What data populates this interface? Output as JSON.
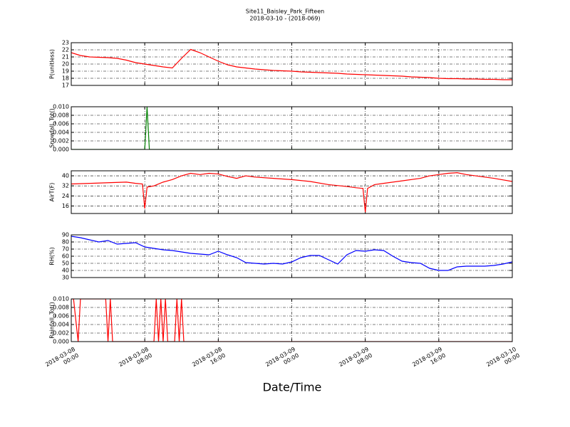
{
  "title": "Site11_Baisley_Park_Fifteen",
  "subtitle": "2018-03-10 - (2018-069)",
  "xlabel": "Date/Time",
  "chart_data": [
    {
      "type": "line",
      "ylabel": "P(unitless)",
      "color": "#ff0000",
      "grid": true,
      "xlim": [
        "2018-03-08 00:00",
        "2018-03-10 00:00"
      ],
      "ylim": [
        17,
        23
      ],
      "yticks": [
        17,
        18,
        19,
        20,
        21,
        22,
        23
      ],
      "x": [
        "2018-03-08 00:00",
        "2018-03-08 01:00",
        "2018-03-08 02:00",
        "2018-03-08 03:00",
        "2018-03-08 04:00",
        "2018-03-08 05:00",
        "2018-03-08 06:00",
        "2018-03-08 07:00",
        "2018-03-08 08:00",
        "2018-03-08 09:00",
        "2018-03-08 10:00",
        "2018-03-08 11:00",
        "2018-03-08 12:00",
        "2018-03-08 13:00",
        "2018-03-08 14:00",
        "2018-03-08 15:00",
        "2018-03-08 16:00",
        "2018-03-08 17:00",
        "2018-03-08 18:00",
        "2018-03-08 19:00",
        "2018-03-08 20:00",
        "2018-03-08 21:00",
        "2018-03-08 22:00",
        "2018-03-08 23:00",
        "2018-03-09 00:00",
        "2018-03-09 01:00",
        "2018-03-09 02:00",
        "2018-03-09 03:00",
        "2018-03-09 04:00",
        "2018-03-09 05:00",
        "2018-03-09 06:00",
        "2018-03-09 07:00",
        "2018-03-09 08:00",
        "2018-03-09 09:00",
        "2018-03-09 10:00",
        "2018-03-09 11:00",
        "2018-03-09 12:00",
        "2018-03-09 13:00",
        "2018-03-09 14:00",
        "2018-03-09 15:00",
        "2018-03-09 16:00",
        "2018-03-09 17:00",
        "2018-03-09 18:00",
        "2018-03-09 19:00",
        "2018-03-09 20:00",
        "2018-03-09 21:00",
        "2018-03-09 22:00",
        "2018-03-09 23:00",
        "2018-03-10 00:00"
      ],
      "values": [
        21.6,
        21.2,
        21.0,
        20.95,
        20.9,
        20.8,
        20.55,
        20.2,
        20.0,
        19.8,
        19.6,
        19.45,
        20.8,
        22.05,
        21.6,
        21.0,
        20.4,
        19.9,
        19.6,
        19.45,
        19.3,
        19.2,
        19.1,
        19.05,
        19.0,
        18.9,
        18.85,
        18.8,
        18.75,
        18.7,
        18.6,
        18.55,
        18.5,
        18.45,
        18.4,
        18.35,
        18.3,
        18.2,
        18.15,
        18.1,
        18.0,
        17.95,
        17.95,
        17.9,
        17.9,
        17.85,
        17.85,
        17.8,
        17.8
      ]
    },
    {
      "type": "line",
      "ylabel": "Snowfall_Tot()",
      "color": "#008000",
      "grid": true,
      "xlim": [
        "2018-03-08 00:00",
        "2018-03-10 00:00"
      ],
      "ylim": [
        0,
        0.01
      ],
      "yticks": [
        {
          "value": 0,
          "label": "0.000"
        },
        {
          "value": 0.002,
          "label": "0.002"
        },
        {
          "value": 0.004,
          "label": "0.004"
        },
        {
          "value": 0.006,
          "label": "0.006"
        },
        {
          "value": 0.008,
          "label": "0.008"
        },
        {
          "value": 0.01,
          "label": "0.010"
        }
      ],
      "x": [
        "2018-03-08 00:00",
        "2018-03-08 08:00",
        "2018-03-08 08:15",
        "2018-03-08 08:30",
        "2018-03-10 00:00"
      ],
      "values": [
        0,
        0,
        0.01,
        0,
        0
      ]
    },
    {
      "type": "line",
      "ylabel": "AirT(F)",
      "color": "#ff0000",
      "grid": true,
      "xlim": [
        "2018-03-08 00:00",
        "2018-03-10 00:00"
      ],
      "ylim": [
        10,
        44
      ],
      "yticks": [
        16,
        24,
        32,
        40
      ],
      "x": [
        "2018-03-08 00:00",
        "2018-03-08 02:00",
        "2018-03-08 04:00",
        "2018-03-08 06:00",
        "2018-03-08 07:00",
        "2018-03-08 07:45",
        "2018-03-08 08:00",
        "2018-03-08 08:15",
        "2018-03-08 09:00",
        "2018-03-08 10:00",
        "2018-03-08 11:00",
        "2018-03-08 12:00",
        "2018-03-08 13:00",
        "2018-03-08 14:00",
        "2018-03-08 15:00",
        "2018-03-08 16:00",
        "2018-03-08 17:00",
        "2018-03-08 18:00",
        "2018-03-08 19:00",
        "2018-03-08 20:00",
        "2018-03-08 22:00",
        "2018-03-09 00:00",
        "2018-03-09 02:00",
        "2018-03-09 04:00",
        "2018-03-09 06:00",
        "2018-03-09 07:00",
        "2018-03-09 07:45",
        "2018-03-09 08:00",
        "2018-03-09 08:15",
        "2018-03-09 09:00",
        "2018-03-09 10:00",
        "2018-03-09 12:00",
        "2018-03-09 14:00",
        "2018-03-09 15:00",
        "2018-03-09 16:00",
        "2018-03-09 17:00",
        "2018-03-09 18:00",
        "2018-03-09 19:00",
        "2018-03-09 20:00",
        "2018-03-09 22:00",
        "2018-03-10 00:00"
      ],
      "values": [
        33.5,
        34,
        34.5,
        35,
        34,
        33.5,
        14,
        31,
        32,
        35,
        37,
        40,
        42,
        41,
        42,
        41.5,
        39.5,
        38,
        40,
        39,
        38,
        37,
        35.5,
        33,
        31.5,
        30.5,
        30,
        11,
        30,
        33,
        34,
        36,
        38,
        40,
        41,
        42,
        42.5,
        41,
        40,
        38,
        35.5
      ]
    },
    {
      "type": "line",
      "ylabel": "RH(%)",
      "color": "#0000ff",
      "grid": true,
      "xlim": [
        "2018-03-08 00:00",
        "2018-03-10 00:00"
      ],
      "ylim": [
        30,
        90
      ],
      "yticks": [
        30,
        40,
        50,
        60,
        70,
        80,
        90
      ],
      "x": [
        "2018-03-08 00:00",
        "2018-03-08 01:00",
        "2018-03-08 02:00",
        "2018-03-08 03:00",
        "2018-03-08 04:00",
        "2018-03-08 05:00",
        "2018-03-08 06:00",
        "2018-03-08 07:00",
        "2018-03-08 08:00",
        "2018-03-08 09:00",
        "2018-03-08 10:00",
        "2018-03-08 11:00",
        "2018-03-08 12:00",
        "2018-03-08 13:00",
        "2018-03-08 14:00",
        "2018-03-08 15:00",
        "2018-03-08 16:00",
        "2018-03-08 17:00",
        "2018-03-08 18:00",
        "2018-03-08 19:00",
        "2018-03-08 20:00",
        "2018-03-08 21:00",
        "2018-03-08 22:00",
        "2018-03-08 23:00",
        "2018-03-09 00:00",
        "2018-03-09 01:00",
        "2018-03-09 02:00",
        "2018-03-09 03:00",
        "2018-03-09 04:00",
        "2018-03-09 05:00",
        "2018-03-09 06:00",
        "2018-03-09 07:00",
        "2018-03-09 08:00",
        "2018-03-09 09:00",
        "2018-03-09 10:00",
        "2018-03-09 11:00",
        "2018-03-09 12:00",
        "2018-03-09 13:00",
        "2018-03-09 14:00",
        "2018-03-09 15:00",
        "2018-03-09 16:00",
        "2018-03-09 17:00",
        "2018-03-09 18:00",
        "2018-03-09 19:00",
        "2018-03-09 20:00",
        "2018-03-09 21:00",
        "2018-03-09 22:00",
        "2018-03-09 23:00",
        "2018-03-10 00:00"
      ],
      "values": [
        88,
        86,
        83,
        80,
        82,
        77,
        78,
        79,
        73,
        71,
        69,
        68,
        66,
        64,
        63,
        62,
        67,
        62,
        58,
        51,
        50,
        49,
        50,
        49,
        52,
        58,
        61,
        61,
        55,
        49,
        62,
        68,
        67,
        69,
        68,
        60,
        53,
        51,
        50,
        43,
        40,
        40,
        45,
        46,
        46,
        46,
        47,
        49,
        52
      ]
    },
    {
      "type": "line",
      "ylabel": "Rainfall_Tot()",
      "color": "#ff0000",
      "grid": true,
      "xlim": [
        "2018-03-08 00:00",
        "2018-03-10 00:00"
      ],
      "ylim": [
        0,
        0.01
      ],
      "yticks": [
        {
          "value": 0,
          "label": "0.000"
        },
        {
          "value": 0.002,
          "label": "0.002"
        },
        {
          "value": 0.004,
          "label": "0.004"
        },
        {
          "value": 0.006,
          "label": "0.006"
        },
        {
          "value": 0.008,
          "label": "0.008"
        },
        {
          "value": 0.01,
          "label": "0.010"
        }
      ],
      "xticks": [
        {
          "value": "2018-03-08 00:00",
          "label": "2018-03-08\n00:00"
        },
        {
          "value": "2018-03-08 08:00",
          "label": "2018-03-08\n08:00"
        },
        {
          "value": "2018-03-08 16:00",
          "label": "2018-03-08\n16:00"
        },
        {
          "value": "2018-03-09 00:00",
          "label": "2018-03-09\n00:00"
        },
        {
          "value": "2018-03-09 08:00",
          "label": "2018-03-09\n08:00"
        },
        {
          "value": "2018-03-09 16:00",
          "label": "2018-03-09\n16:00"
        },
        {
          "value": "2018-03-10 00:00",
          "label": "2018-03-10\n00:00"
        }
      ],
      "x": [
        "2018-03-08 00:00",
        "2018-03-08 00:15",
        "2018-03-08 00:45",
        "2018-03-08 01:00",
        "2018-03-08 03:45",
        "2018-03-08 04:00",
        "2018-03-08 04:15",
        "2018-03-08 04:30",
        "2018-03-08 09:00",
        "2018-03-08 09:15",
        "2018-03-08 09:30",
        "2018-03-08 09:45",
        "2018-03-08 10:00",
        "2018-03-08 10:15",
        "2018-03-08 10:30",
        "2018-03-08 11:15",
        "2018-03-08 11:30",
        "2018-03-08 11:45",
        "2018-03-08 12:00",
        "2018-03-08 12:15",
        "2018-03-10 00:00"
      ],
      "values": [
        0.01,
        0.01,
        0,
        0.01,
        0.01,
        0,
        0.01,
        0,
        0,
        0.01,
        0,
        0.01,
        0,
        0.01,
        0,
        0,
        0.01,
        0,
        0.01,
        0,
        0
      ]
    }
  ]
}
